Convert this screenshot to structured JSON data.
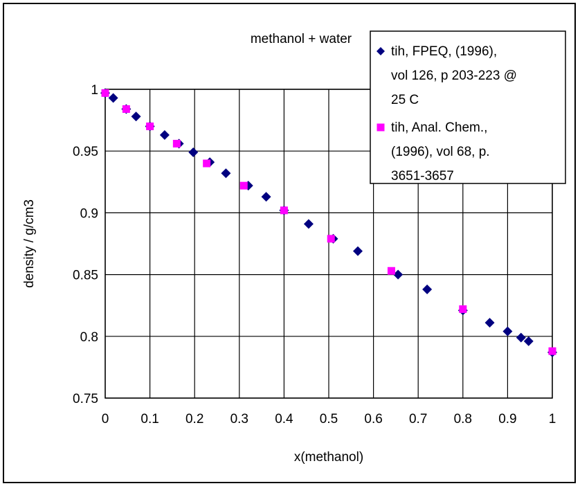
{
  "chart_data": {
    "type": "scatter",
    "title": "methanol + water",
    "xlabel": "x(methanol)",
    "ylabel": "density / g/cm3",
    "xlim": [
      0,
      1
    ],
    "ylim": [
      0.75,
      1
    ],
    "x_ticks": [
      "0",
      "0.1",
      "0.2",
      "0.3",
      "0.4",
      "0.5",
      "0.6",
      "0.7",
      "0.8",
      "0.9",
      "1"
    ],
    "y_ticks": [
      "0.75",
      "0.8",
      "0.85",
      "0.9",
      "0.95",
      "1"
    ],
    "grid": true,
    "legend_position": "top-right",
    "series": [
      {
        "name": "tih, FPEQ, (1996), vol 126, p 203-223 @ 25 C",
        "legend_lines": [
          "tih, FPEQ, (1996),",
          "vol 126, p 203-223 @",
          "25 C"
        ],
        "marker": "diamond",
        "color": "#000080",
        "points": [
          [
            0.0,
            0.997
          ],
          [
            0.018,
            0.993
          ],
          [
            0.047,
            0.984
          ],
          [
            0.069,
            0.978
          ],
          [
            0.1,
            0.97
          ],
          [
            0.133,
            0.963
          ],
          [
            0.165,
            0.956
          ],
          [
            0.197,
            0.949
          ],
          [
            0.234,
            0.941
          ],
          [
            0.27,
            0.932
          ],
          [
            0.32,
            0.922
          ],
          [
            0.36,
            0.913
          ],
          [
            0.4,
            0.902
          ],
          [
            0.455,
            0.891
          ],
          [
            0.51,
            0.879
          ],
          [
            0.565,
            0.869
          ],
          [
            0.655,
            0.85
          ],
          [
            0.72,
            0.838
          ],
          [
            0.8,
            0.821
          ],
          [
            0.86,
            0.811
          ],
          [
            0.9,
            0.804
          ],
          [
            0.93,
            0.799
          ],
          [
            0.947,
            0.796
          ],
          [
            1.0,
            0.787
          ]
        ]
      },
      {
        "name": "tih, Anal. Chem., (1996), vol 68, p. 3651-3657",
        "legend_lines": [
          "tih, Anal. Chem.,",
          "(1996), vol 68, p.",
          "3651-3657"
        ],
        "marker": "square",
        "color": "#ff00ff",
        "points": [
          [
            0.0,
            0.997
          ],
          [
            0.047,
            0.984
          ],
          [
            0.1,
            0.97
          ],
          [
            0.16,
            0.956
          ],
          [
            0.227,
            0.94
          ],
          [
            0.31,
            0.922
          ],
          [
            0.4,
            0.902
          ],
          [
            0.505,
            0.879
          ],
          [
            0.64,
            0.853
          ],
          [
            0.8,
            0.822
          ],
          [
            1.0,
            0.788
          ]
        ]
      }
    ]
  }
}
